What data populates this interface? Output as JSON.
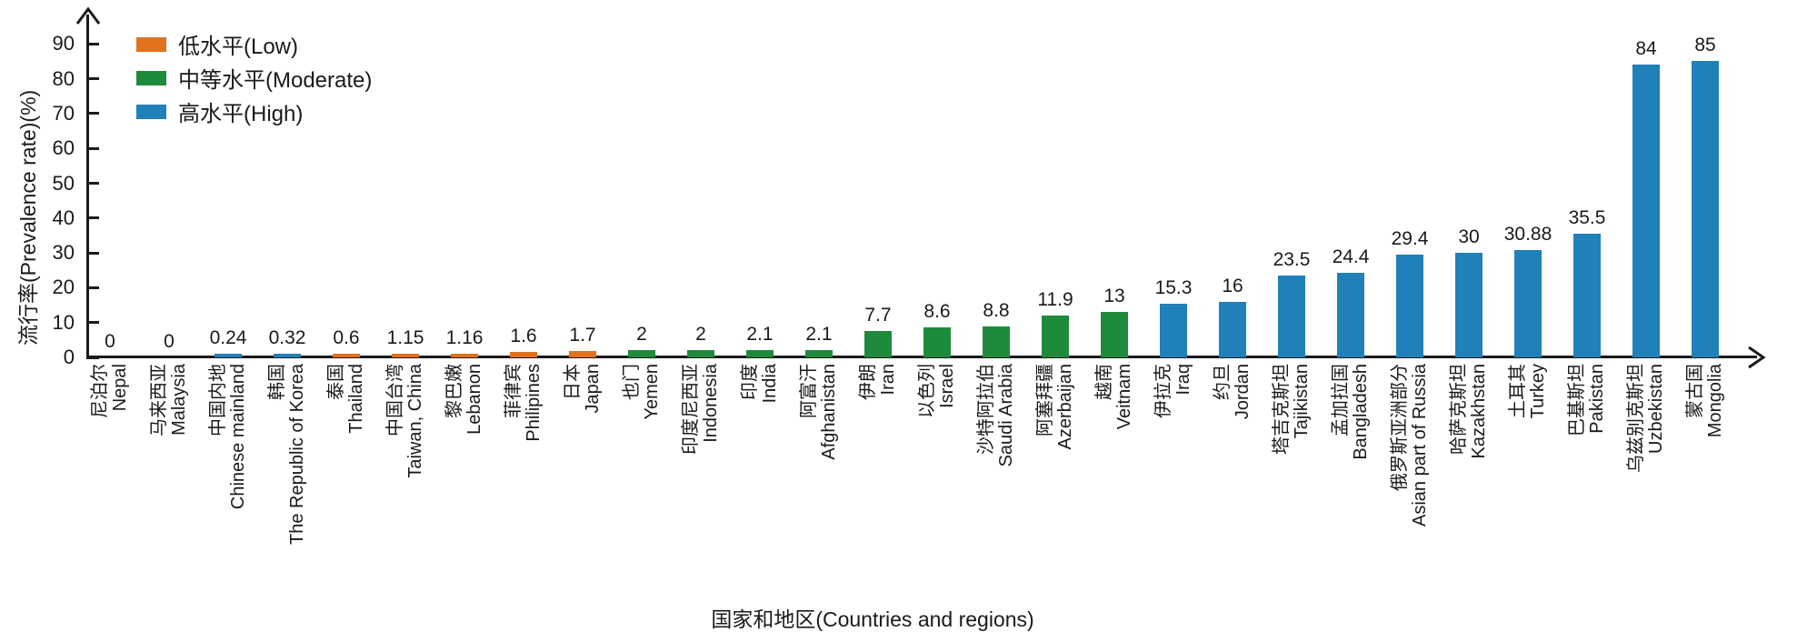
{
  "chart_data": {
    "type": "bar",
    "title": "",
    "xlabel": "国家和地区(Countries and regions)",
    "ylabel": "流行率(Prevalence rate)(%)",
    "ylim": [
      0,
      90
    ],
    "yticks": [
      0,
      10,
      20,
      30,
      40,
      50,
      60,
      70,
      80,
      90
    ],
    "grid": false,
    "legend_position": "top-left-inside",
    "legend": [
      {
        "level": "low",
        "label": "低水平(Low)",
        "color": "#E2711D"
      },
      {
        "level": "moderate",
        "label": "中等水平(Moderate)",
        "color": "#1E8B3C"
      },
      {
        "level": "high",
        "label": "高水平(High)",
        "color": "#2080B9"
      }
    ],
    "points": [
      {
        "cn": "尼泊尔",
        "en": "Nepal",
        "value": 0,
        "label": "0",
        "level": "none"
      },
      {
        "cn": "马来西亚",
        "en": "Malaysia",
        "value": 0,
        "label": "0",
        "level": "none"
      },
      {
        "cn": "中国内地",
        "en": "Chinese mainland",
        "value": 0.24,
        "label": "0.24",
        "level": "high"
      },
      {
        "cn": "韩国",
        "en": "The Republic of Korea",
        "value": 0.32,
        "label": "0.32",
        "level": "high"
      },
      {
        "cn": "泰国",
        "en": "Thailand",
        "value": 0.6,
        "label": "0.6",
        "level": "low"
      },
      {
        "cn": "中国台湾",
        "en": "Taiwan, China",
        "value": 1.15,
        "label": "1.15",
        "level": "low"
      },
      {
        "cn": "黎巴嫩",
        "en": "Lebanon",
        "value": 1.16,
        "label": "1.16",
        "level": "low"
      },
      {
        "cn": "菲律宾",
        "en": "Philipines",
        "value": 1.6,
        "label": "1.6",
        "level": "low"
      },
      {
        "cn": "日本",
        "en": "Japan",
        "value": 1.7,
        "label": "1.7",
        "level": "low"
      },
      {
        "cn": "也门",
        "en": "Yemen",
        "value": 2,
        "label": "2",
        "level": "moderate"
      },
      {
        "cn": "印度尼西亚",
        "en": "Indonesia",
        "value": 2,
        "label": "2",
        "level": "moderate"
      },
      {
        "cn": "印度",
        "en": "India",
        "value": 2.1,
        "label": "2.1",
        "level": "moderate"
      },
      {
        "cn": "阿富汗",
        "en": "Afghanistan",
        "value": 2.1,
        "label": "2.1",
        "level": "moderate"
      },
      {
        "cn": "伊朗",
        "en": "Iran",
        "value": 7.7,
        "label": "7.7",
        "level": "moderate"
      },
      {
        "cn": "以色列",
        "en": "Israel",
        "value": 8.6,
        "label": "8.6",
        "level": "moderate"
      },
      {
        "cn": "沙特阿拉伯",
        "en": "Saudi Arabia",
        "value": 8.8,
        "label": "8.8",
        "level": "moderate"
      },
      {
        "cn": "阿塞拜疆",
        "en": "Azerbaijan",
        "value": 11.9,
        "label": "11.9",
        "level": "moderate"
      },
      {
        "cn": "越南",
        "en": "Veitnam",
        "value": 13,
        "label": "13",
        "level": "moderate"
      },
      {
        "cn": "伊拉克",
        "en": "Iraq",
        "value": 15.3,
        "label": "15.3",
        "level": "high"
      },
      {
        "cn": "约旦",
        "en": "Jordan",
        "value": 16,
        "label": "16",
        "level": "high"
      },
      {
        "cn": "塔吉克斯坦",
        "en": "Tajikistan",
        "value": 23.5,
        "label": "23.5",
        "level": "high"
      },
      {
        "cn": "孟加拉国",
        "en": "Bangladesh",
        "value": 24.4,
        "label": "24.4",
        "level": "high"
      },
      {
        "cn": "俄罗斯亚洲部分",
        "en": "Asian part of Russia",
        "value": 29.4,
        "label": "29.4",
        "level": "high"
      },
      {
        "cn": "哈萨克斯坦",
        "en": "Kazakhstan",
        "value": 30,
        "label": "30",
        "level": "high"
      },
      {
        "cn": "土耳其",
        "en": "Turkey",
        "value": 30.88,
        "label": "30.88",
        "level": "high"
      },
      {
        "cn": "巴基斯坦",
        "en": "Pakistan",
        "value": 35.5,
        "label": "35.5",
        "level": "high"
      },
      {
        "cn": "乌兹别克斯坦",
        "en": "Uzbekistan",
        "value": 84,
        "label": "84",
        "level": "high"
      },
      {
        "cn": "蒙古国",
        "en": "Mongolia",
        "value": 85,
        "label": "85",
        "level": "high"
      }
    ]
  }
}
